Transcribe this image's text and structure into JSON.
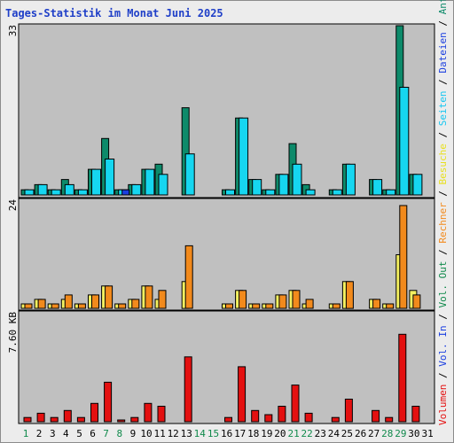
{
  "title": "Tages-Statistik im Monat Juni 2025",
  "colors": {
    "hits": "#0d8a6a",
    "files": "#16d6f0",
    "pages": "#1a3ee0",
    "visits": "#f4f060",
    "sites": "#f28a1c",
    "kbytes": "#e41010",
    "weekday_tick": "#000000",
    "weekend_tick": "#118a4c",
    "panel_bg": "#c0c0c0"
  },
  "right_label_parts": [
    {
      "text": "Volumen",
      "color": "#e41010"
    },
    {
      "text": " / ",
      "color": "#000000"
    },
    {
      "text": "Vol. In",
      "color": "#1a3ee0"
    },
    {
      "text": " / ",
      "color": "#000000"
    },
    {
      "text": "Vol. Out",
      "color": "#118a4c"
    },
    {
      "text": " / ",
      "color": "#000000"
    },
    {
      "text": "Rechner",
      "color": "#f28a1c"
    },
    {
      "text": " / ",
      "color": "#000000"
    },
    {
      "text": "Besuche",
      "color": "#e8e020"
    },
    {
      "text": " / ",
      "color": "#000000"
    },
    {
      "text": "Seiten",
      "color": "#16c6f0"
    },
    {
      "text": " / ",
      "color": "#000000"
    },
    {
      "text": "Dateien",
      "color": "#1a3ee0"
    },
    {
      "text": " / ",
      "color": "#000000"
    },
    {
      "text": "Anfragen",
      "color": "#0d8a6a"
    }
  ],
  "chart_data": [
    {
      "type": "bar",
      "name": "hits-files-pages",
      "y_max_label": "33",
      "ylim": [
        0,
        33
      ],
      "x": [
        1,
        2,
        3,
        4,
        5,
        6,
        7,
        8,
        9,
        10,
        11,
        12,
        13,
        14,
        15,
        16,
        17,
        18,
        19,
        20,
        21,
        22,
        23,
        24,
        25,
        26,
        27,
        28,
        29,
        30,
        31
      ],
      "series": [
        {
          "name": "Anfragen",
          "color": "#0d8a6a",
          "values": [
            1,
            2,
            1,
            3,
            1,
            5,
            11,
            1,
            2,
            5,
            6,
            0,
            17,
            0,
            0,
            1,
            15,
            3,
            1,
            4,
            10,
            2,
            0,
            1,
            6,
            0,
            3,
            1,
            33,
            4,
            0
          ]
        },
        {
          "name": "Dateien",
          "color": "#16d6f0",
          "values": [
            1,
            2,
            1,
            2,
            1,
            5,
            7,
            1,
            2,
            5,
            4,
            0,
            8,
            0,
            0,
            1,
            15,
            3,
            1,
            4,
            6,
            1,
            0,
            1,
            6,
            0,
            3,
            1,
            21,
            4,
            0
          ]
        },
        {
          "name": "Seiten",
          "color": "#1a3ee0",
          "values": [
            0,
            0,
            0,
            0,
            0,
            0,
            0,
            1,
            0,
            0,
            0,
            0,
            0,
            0,
            0,
            0,
            0,
            0,
            0,
            0,
            0,
            0,
            0,
            0,
            0,
            0,
            0,
            0,
            0,
            0,
            0
          ]
        }
      ]
    },
    {
      "type": "bar",
      "name": "visits-sites",
      "y_max_label": "24",
      "ylim": [
        0,
        24
      ],
      "x": [
        1,
        2,
        3,
        4,
        5,
        6,
        7,
        8,
        9,
        10,
        11,
        12,
        13,
        14,
        15,
        16,
        17,
        18,
        19,
        20,
        21,
        22,
        23,
        24,
        25,
        26,
        27,
        28,
        29,
        30,
        31
      ],
      "series": [
        {
          "name": "Besuche",
          "color": "#f4f060",
          "values": [
            1,
            2,
            1,
            2,
            1,
            3,
            5,
            1,
            2,
            5,
            2,
            0,
            6,
            0,
            0,
            1,
            4,
            1,
            1,
            3,
            4,
            1,
            0,
            1,
            6,
            0,
            2,
            1,
            12,
            4,
            0
          ]
        },
        {
          "name": "Rechner",
          "color": "#f28a1c",
          "values": [
            1,
            2,
            1,
            3,
            1,
            3,
            5,
            1,
            2,
            5,
            4,
            0,
            14,
            0,
            0,
            1,
            4,
            1,
            1,
            3,
            4,
            2,
            0,
            1,
            6,
            0,
            2,
            1,
            23,
            3,
            0
          ]
        }
      ]
    },
    {
      "type": "bar",
      "name": "volume",
      "y_max_label": "7.60 KB",
      "ylim": [
        0,
        7.6
      ],
      "x": [
        1,
        2,
        3,
        4,
        5,
        6,
        7,
        8,
        9,
        10,
        11,
        12,
        13,
        14,
        15,
        16,
        17,
        18,
        19,
        20,
        21,
        22,
        23,
        24,
        25,
        26,
        27,
        28,
        29,
        30,
        31
      ],
      "series": [
        {
          "name": "Volumen",
          "color": "#e41010",
          "values": [
            0.3,
            0.6,
            0.3,
            0.8,
            0.3,
            1.3,
            2.8,
            0.08,
            0.3,
            1.3,
            1.1,
            0,
            4.6,
            0,
            0,
            0.3,
            3.9,
            0.8,
            0.5,
            1.1,
            2.6,
            0.6,
            0,
            0.3,
            1.6,
            0,
            0.8,
            0.3,
            6.2,
            1.1,
            0
          ]
        }
      ]
    }
  ],
  "x_ticks": [
    {
      "label": "1",
      "weekend": true
    },
    {
      "label": "2",
      "weekend": false
    },
    {
      "label": "3",
      "weekend": false
    },
    {
      "label": "4",
      "weekend": false
    },
    {
      "label": "5",
      "weekend": false
    },
    {
      "label": "6",
      "weekend": false
    },
    {
      "label": "7",
      "weekend": true
    },
    {
      "label": "8",
      "weekend": true
    },
    {
      "label": "9",
      "weekend": false
    },
    {
      "label": "10",
      "weekend": false
    },
    {
      "label": "11",
      "weekend": false
    },
    {
      "label": "12",
      "weekend": false
    },
    {
      "label": "13",
      "weekend": false
    },
    {
      "label": "14",
      "weekend": true
    },
    {
      "label": "15",
      "weekend": true
    },
    {
      "label": "16",
      "weekend": false
    },
    {
      "label": "17",
      "weekend": false
    },
    {
      "label": "18",
      "weekend": false
    },
    {
      "label": "19",
      "weekend": false
    },
    {
      "label": "20",
      "weekend": false
    },
    {
      "label": "21",
      "weekend": true
    },
    {
      "label": "22",
      "weekend": true
    },
    {
      "label": "23",
      "weekend": false
    },
    {
      "label": "24",
      "weekend": false
    },
    {
      "label": "25",
      "weekend": false
    },
    {
      "label": "26",
      "weekend": false
    },
    {
      "label": "27",
      "weekend": false
    },
    {
      "label": "28",
      "weekend": true
    },
    {
      "label": "29",
      "weekend": true
    },
    {
      "label": "30",
      "weekend": false
    },
    {
      "label": "31",
      "weekend": false
    }
  ]
}
